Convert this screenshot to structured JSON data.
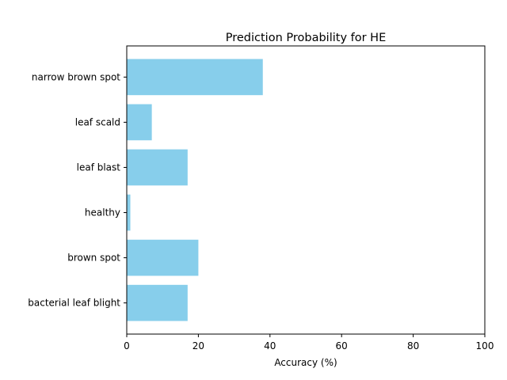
{
  "chart_data": {
    "type": "bar",
    "orientation": "horizontal",
    "title": "Prediction Probability for HE",
    "xlabel": "Accuracy (%)",
    "ylabel": "",
    "xlim": [
      0,
      100
    ],
    "xticks": [
      0,
      20,
      40,
      60,
      80,
      100
    ],
    "categories": [
      "bacterial leaf blight",
      "brown spot",
      "healthy",
      "leaf blast",
      "leaf scald",
      "narrow brown spot"
    ],
    "values": [
      17,
      20,
      1,
      17,
      7,
      38
    ],
    "bar_color": "#87ceeb",
    "grid": false,
    "legend": "none"
  }
}
